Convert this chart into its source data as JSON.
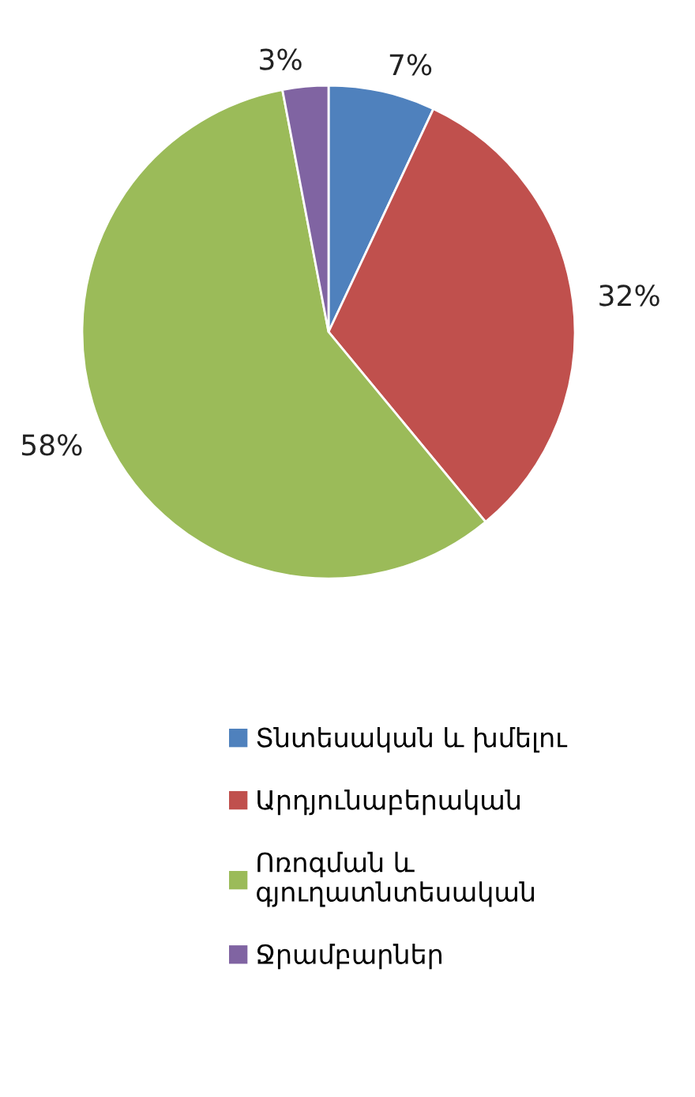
{
  "chart_data": {
    "type": "pie",
    "categories": [
      "Տնտեսական և խմելու",
      "Արդյունաբերական",
      "Ոռոգման և\nգյուղատնտեսական",
      "Ջրամբարներ"
    ],
    "values": [
      7,
      32,
      58,
      3
    ],
    "colors": [
      "#4f81bd",
      "#c0504d",
      "#9bbb59",
      "#8064a2"
    ],
    "value_labels": [
      "7%",
      "32%",
      "58%",
      "3%"
    ],
    "legend": "bottom"
  }
}
